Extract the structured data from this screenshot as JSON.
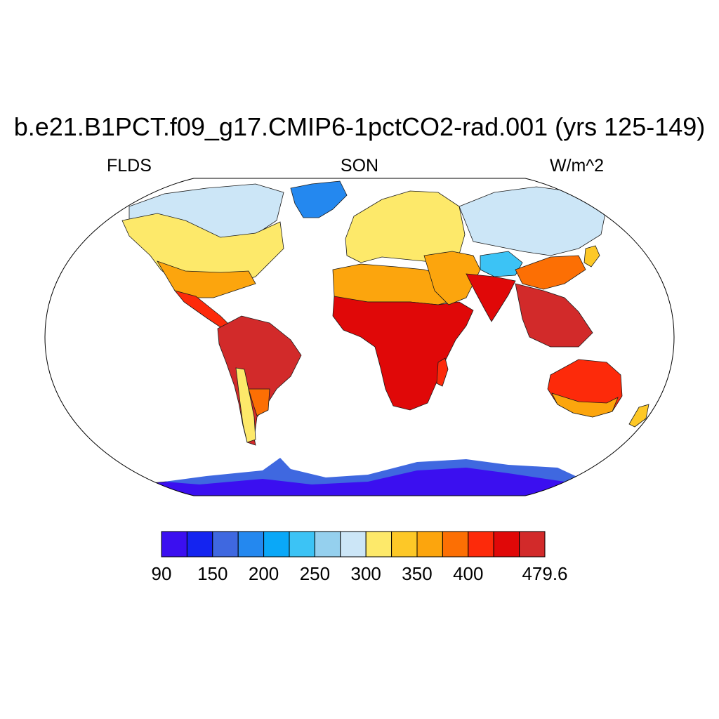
{
  "title": "b.e21.B1PCT.f09_g17.CMIP6-1pctCO2-rad.001 (yrs 125-149)",
  "left_label": "FLDS",
  "center_label": "SON",
  "right_label": "W/m^2",
  "colorbar": {
    "colors": [
      "#3b0ff0",
      "#1424f0",
      "#3f68e0",
      "#2488ef",
      "#0aa8f8",
      "#3cc3f5",
      "#95d0ee",
      "#cce6f7",
      "#fde96a",
      "#fdc827",
      "#fca50d",
      "#fc6f04",
      "#fd2a0a",
      "#e00808",
      "#d22a2a"
    ],
    "tick_labels": [
      "90",
      "150",
      "200",
      "250",
      "300",
      "350",
      "400",
      "479.6"
    ],
    "tick_positions": [
      0,
      2,
      4,
      6,
      8,
      10,
      12,
      15
    ]
  },
  "map_legend": {
    "land_regions": [
      {
        "name": "Greenland",
        "color_index": 4
      },
      {
        "name": "Arctic Canada",
        "color_index": 7
      },
      {
        "name": "North America",
        "color_index": 9
      },
      {
        "name": "Central America",
        "color_index": 12
      },
      {
        "name": "Amazon",
        "color_index": 14
      },
      {
        "name": "Andes",
        "color_index": 8
      },
      {
        "name": "Patagonia",
        "color_index": 8
      },
      {
        "name": "Europe",
        "color_index": 8
      },
      {
        "name": "Sahara",
        "color_index": 11
      },
      {
        "name": "Central Africa",
        "color_index": 13
      },
      {
        "name": "Siberia",
        "color_index": 7
      },
      {
        "name": "Tibet",
        "color_index": 5
      },
      {
        "name": "India",
        "color_index": 13
      },
      {
        "name": "Southeast Asia",
        "color_index": 13
      },
      {
        "name": "Australia",
        "color_index": 12
      },
      {
        "name": "Antarctica",
        "color_index": 0
      }
    ]
  }
}
